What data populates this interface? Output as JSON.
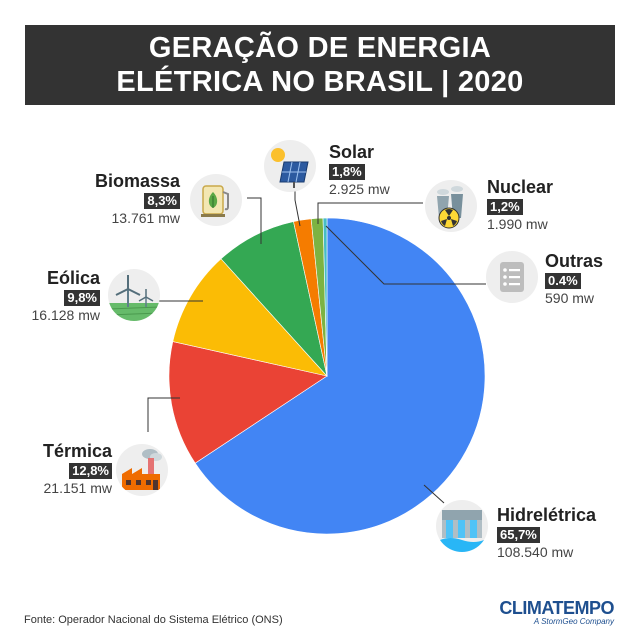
{
  "title": {
    "line1": "GERAÇÃO DE ENERGIA",
    "line2": "ELÉTRICA NO BRASIL | 2020"
  },
  "chart_data": {
    "type": "pie",
    "title": "GERAÇÃO DE ENERGIA ELÉTRICA NO BRASIL | 2020",
    "unit": "mw",
    "slices": [
      {
        "name": "Hidrelétrica",
        "percent": 65.7,
        "percent_label": "65,7%",
        "value_label": "108.540 mw",
        "color": "#4285f4"
      },
      {
        "name": "Térmica",
        "percent": 12.8,
        "percent_label": "12,8%",
        "value_label": "21.151 mw",
        "color": "#ea4335"
      },
      {
        "name": "Eólica",
        "percent": 9.8,
        "percent_label": "9,8%",
        "value_label": "16.128 mw",
        "color": "#fbbc05"
      },
      {
        "name": "Biomassa",
        "percent": 8.3,
        "percent_label": "8,3%",
        "value_label": "13.761 mw",
        "color": "#34a853"
      },
      {
        "name": "Solar",
        "percent": 1.8,
        "percent_label": "1,8%",
        "value_label": "2.925 mw",
        "color": "#f57c00"
      },
      {
        "name": "Nuclear",
        "percent": 1.2,
        "percent_label": "1,2%",
        "value_label": "1.990 mw",
        "color": "#7cb342"
      },
      {
        "name": "Outras",
        "percent": 0.4,
        "percent_label": "0.4%",
        "value_label": "590 mw",
        "color": "#46bdc6"
      }
    ]
  },
  "icons": {
    "hidreletrica": "dam-icon",
    "termica": "factory-icon",
    "eolica": "wind-turbine-icon",
    "biomassa": "biomass-pump-icon",
    "solar": "solar-panel-icon",
    "nuclear": "nuclear-plant-icon",
    "outras": "list-icon"
  },
  "footer": {
    "source": "Fonte: Operador Nacional do Sistema Elétrico (ONS)"
  },
  "brand": {
    "name": "CLIMATEMPO",
    "tagline": "A StormGeo Company"
  }
}
